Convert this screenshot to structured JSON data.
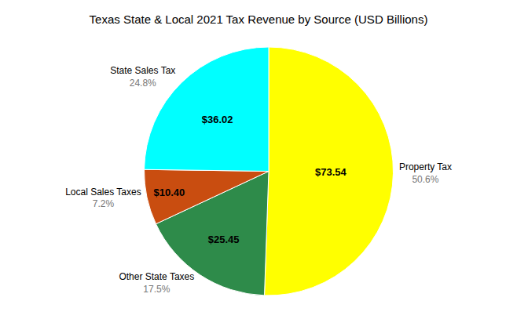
{
  "chart_data": {
    "type": "pie",
    "title": "Texas State & Local 2021 Tax Revenue by Source (USD Billions)",
    "categories": [
      "Property Tax",
      "Other State Taxes",
      "Local Sales Taxes",
      "State Sales Tax"
    ],
    "values": [
      50.6,
      17.5,
      7.2,
      24.8
    ],
    "value_labels": [
      "50.6%",
      "17.5%",
      "7.2%",
      "24.8%"
    ],
    "amounts": [
      73.54,
      25.45,
      10.4,
      36.02
    ],
    "amount_labels": [
      "$73.54",
      "$25.45",
      "$10.40",
      "$36.02"
    ],
    "colors": [
      "#FFFF00",
      "#2E8B4A",
      "#C94D10",
      "#00FFFF"
    ],
    "data_labels": true
  }
}
